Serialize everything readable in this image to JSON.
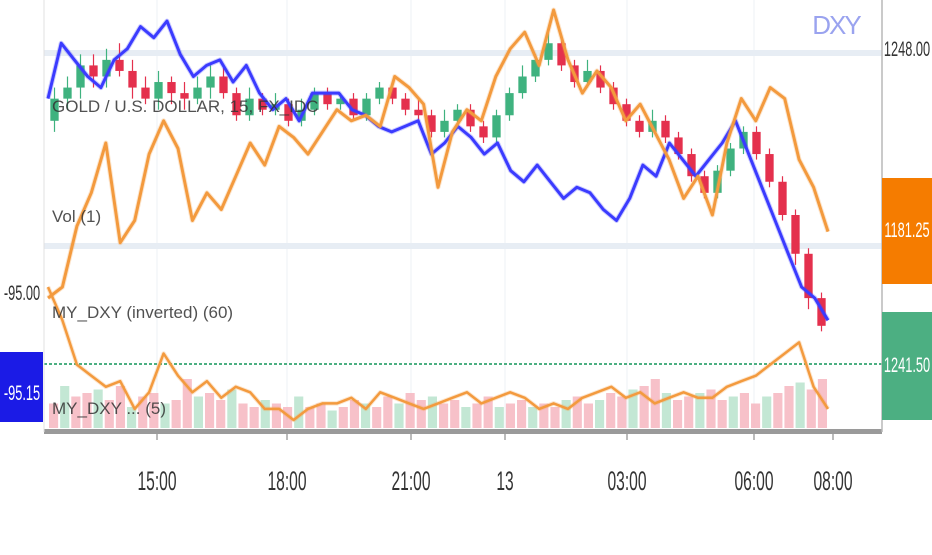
{
  "symbol_watermark": "DXY",
  "legend": [
    {
      "text": "GOLD / U.S. DOLLAR, 15, FX_IDC",
      "color": "#333333"
    },
    {
      "text": "Vol (1)",
      "color": "#333333"
    },
    {
      "text": "MY_DXY (inverted) (60)",
      "color": "#333333"
    },
    {
      "text": "MY_DXY ... (5)",
      "color": "#333333"
    }
  ],
  "left_axis": {
    "ticks": [
      "-95.00"
    ],
    "badge": {
      "text": "-95.15",
      "color": "#1b1be6"
    }
  },
  "right_axis": {
    "ticks": [
      "1248.00"
    ],
    "badges": [
      {
        "text": "1181.25",
        "color": "#f57c00"
      },
      {
        "text": "1241.50",
        "color": "#4caf82"
      }
    ]
  },
  "x_axis": {
    "ticks": [
      "15:00",
      "18:00",
      "21:00",
      "13",
      "03:00",
      "06:00",
      "08:00"
    ]
  },
  "chart_data": {
    "type": "line",
    "ylim": [
      1178,
      1252
    ],
    "series": [
      {
        "name": "MY_DXY (inverted) (60)",
        "color": "#3b3bff",
        "width": 3,
        "values": [
          1236,
          1246,
          1243,
          1240,
          1238,
          1243,
          1245,
          1249,
          1247,
          1250,
          1244,
          1240,
          1242,
          1243,
          1239,
          1242,
          1237,
          1234,
          1236,
          1232,
          1237,
          1237,
          1237,
          1234,
          1233,
          1231,
          1230,
          1231,
          1232,
          1226,
          1228,
          1231,
          1229,
          1226,
          1228,
          1223,
          1221,
          1224,
          1221,
          1218,
          1220,
          1219,
          1216,
          1214,
          1218,
          1224,
          1222,
          1228,
          1225,
          1222,
          1225,
          1228,
          1232,
          1226,
          1220,
          1214,
          1208,
          1202,
          1200,
          1196
        ]
      },
      {
        "name": "GOLD",
        "color": "#f39a3e",
        "width": 3,
        "values": [
          1200,
          1202,
          1213,
          1219,
          1228,
          1210,
          1214,
          1226,
          1232,
          1227,
          1214,
          1219,
          1216,
          1222,
          1228,
          1224,
          1231,
          1229,
          1226,
          1230,
          1234,
          1232,
          1233,
          1231,
          1240,
          1238,
          1235,
          1220,
          1230,
          1234,
          1232,
          1240,
          1245,
          1248,
          1242,
          1252,
          1243,
          1237,
          1241,
          1238,
          1232,
          1235,
          1230,
          1225,
          1218,
          1222,
          1215,
          1228,
          1236,
          1232,
          1238,
          1236,
          1225,
          1220,
          1212
        ]
      },
      {
        "name": "MY_DXY (inverted) (5)",
        "color": "#f39a3e",
        "width": 2.5,
        "values": [
          1202,
          1196,
          1188,
          1186,
          1184,
          1185,
          1180,
          1183,
          1190,
          1186,
          1183,
          1185,
          1182,
          1184,
          1183,
          1180,
          1180,
          1178,
          1180,
          1181,
          1181,
          1182,
          1180,
          1183,
          1182,
          1181,
          1180,
          1181,
          1182,
          1183,
          1181,
          1182,
          1183,
          1182,
          1180,
          1181,
          1180,
          1182,
          1183,
          1184,
          1182,
          1183,
          1181,
          1182,
          1183,
          1182,
          1182,
          1184,
          1185,
          1186,
          1188,
          1190,
          1192,
          1184,
          1180
        ]
      }
    ],
    "candles": [
      [
        1232,
        1236,
        1238,
        1230
      ],
      [
        1236,
        1238,
        1240,
        1234
      ],
      [
        1238,
        1242,
        1244,
        1236
      ],
      [
        1242,
        1240,
        1244,
        1238
      ],
      [
        1240,
        1243,
        1245,
        1238
      ],
      [
        1243,
        1241,
        1246,
        1240
      ],
      [
        1241,
        1238,
        1243,
        1236
      ],
      [
        1238,
        1236,
        1240,
        1235
      ],
      [
        1236,
        1239,
        1241,
        1234
      ],
      [
        1239,
        1237,
        1240,
        1235
      ],
      [
        1237,
        1236,
        1239,
        1234
      ],
      [
        1236,
        1238,
        1240,
        1235
      ],
      [
        1238,
        1240,
        1242,
        1236
      ],
      [
        1240,
        1237,
        1242,
        1236
      ],
      [
        1237,
        1233,
        1238,
        1232
      ],
      [
        1233,
        1236,
        1238,
        1232
      ],
      [
        1236,
        1234,
        1237,
        1233
      ],
      [
        1234,
        1235,
        1237,
        1233
      ],
      [
        1235,
        1232,
        1236,
        1231
      ],
      [
        1232,
        1234,
        1236,
        1231
      ],
      [
        1234,
        1237,
        1238,
        1233
      ],
      [
        1237,
        1235,
        1238,
        1234
      ],
      [
        1235,
        1236,
        1237,
        1234
      ],
      [
        1236,
        1233,
        1237,
        1232
      ],
      [
        1233,
        1236,
        1237,
        1232
      ],
      [
        1236,
        1238,
        1239,
        1235
      ],
      [
        1238,
        1236,
        1239,
        1235
      ],
      [
        1236,
        1234,
        1237,
        1233
      ],
      [
        1234,
        1233,
        1236,
        1232
      ],
      [
        1233,
        1230,
        1234,
        1229
      ],
      [
        1230,
        1232,
        1234,
        1229
      ],
      [
        1232,
        1234,
        1235,
        1231
      ],
      [
        1234,
        1231,
        1235,
        1230
      ],
      [
        1231,
        1229,
        1232,
        1228
      ],
      [
        1229,
        1233,
        1234,
        1228
      ],
      [
        1233,
        1237,
        1238,
        1232
      ],
      [
        1237,
        1240,
        1242,
        1236
      ],
      [
        1240,
        1243,
        1244,
        1239
      ],
      [
        1243,
        1246,
        1248,
        1242
      ],
      [
        1246,
        1242,
        1247,
        1241
      ],
      [
        1242,
        1239,
        1243,
        1238
      ],
      [
        1239,
        1241,
        1243,
        1238
      ],
      [
        1241,
        1238,
        1242,
        1237
      ],
      [
        1238,
        1235,
        1239,
        1234
      ],
      [
        1235,
        1232,
        1236,
        1231
      ],
      [
        1232,
        1230,
        1233,
        1229
      ],
      [
        1230,
        1232,
        1234,
        1229
      ],
      [
        1232,
        1229,
        1233,
        1228
      ],
      [
        1229,
        1226,
        1230,
        1225
      ],
      [
        1226,
        1222,
        1227,
        1221
      ],
      [
        1222,
        1219,
        1223,
        1218
      ],
      [
        1219,
        1223,
        1224,
        1218
      ],
      [
        1223,
        1227,
        1228,
        1222
      ],
      [
        1227,
        1230,
        1231,
        1226
      ],
      [
        1230,
        1226,
        1231,
        1225
      ],
      [
        1226,
        1221,
        1227,
        1220
      ],
      [
        1221,
        1215,
        1222,
        1214
      ],
      [
        1215,
        1208,
        1216,
        1206
      ],
      [
        1208,
        1200,
        1209,
        1198
      ],
      [
        1200,
        1195,
        1201,
        1194
      ]
    ],
    "volumes": [
      0.35,
      0.6,
      0.45,
      0.5,
      0.55,
      0.4,
      0.6,
      0.3,
      0.45,
      0.5,
      0.35,
      0.4,
      0.7,
      0.45,
      0.5,
      0.4,
      0.55,
      0.35,
      0.3,
      0.4,
      0.35,
      0.3,
      0.45,
      0.3,
      0.35,
      0.25,
      0.3,
      0.4,
      0.35,
      0.3,
      0.45,
      0.35,
      0.5,
      0.4,
      0.45,
      0.35,
      0.4,
      0.3,
      0.35,
      0.45,
      0.3,
      0.35,
      0.4,
      0.3,
      0.35,
      0.3,
      0.4,
      0.45,
      0.35,
      0.4,
      0.5,
      0.45,
      0.55,
      0.6,
      0.7,
      0.5,
      0.4,
      0.45,
      0.5,
      0.55,
      0.4,
      0.45,
      0.5,
      0.35,
      0.45,
      0.5,
      0.6,
      0.65,
      0.55,
      0.7
    ]
  }
}
